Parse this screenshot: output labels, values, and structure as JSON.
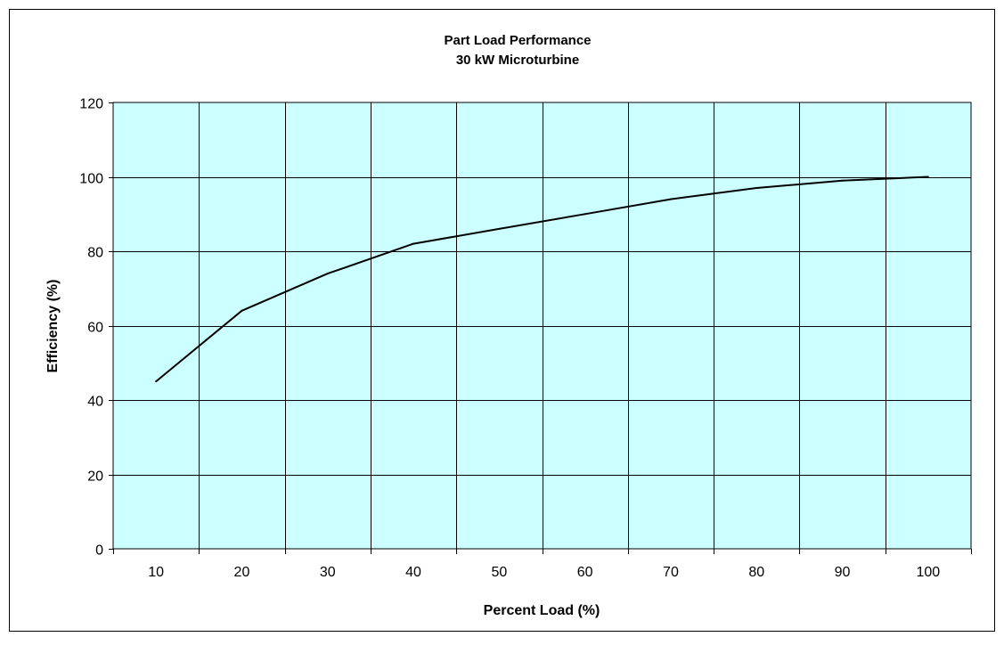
{
  "chart_data": {
    "type": "line",
    "title": "Part Load Performance",
    "subtitle": "30 kW Microturbine",
    "xlabel": "Percent Load (%)",
    "ylabel": "Efficiency (%)",
    "categories": [
      "10",
      "20",
      "30",
      "40",
      "50",
      "60",
      "70",
      "80",
      "90",
      "100"
    ],
    "x": [
      10,
      20,
      30,
      40,
      50,
      60,
      70,
      80,
      90,
      100
    ],
    "series": [
      {
        "values": [
          45,
          64,
          74,
          82,
          86,
          90,
          94,
          97,
          99,
          100
        ],
        "color": "#000000"
      }
    ],
    "ylim": [
      0,
      120
    ],
    "yticks": [
      0,
      20,
      40,
      60,
      80,
      100,
      120
    ],
    "grid": true,
    "legend": "none",
    "colors": {
      "plot_background": "#ccffff",
      "gridlines": "#000000",
      "frame_border": "#000000"
    }
  }
}
